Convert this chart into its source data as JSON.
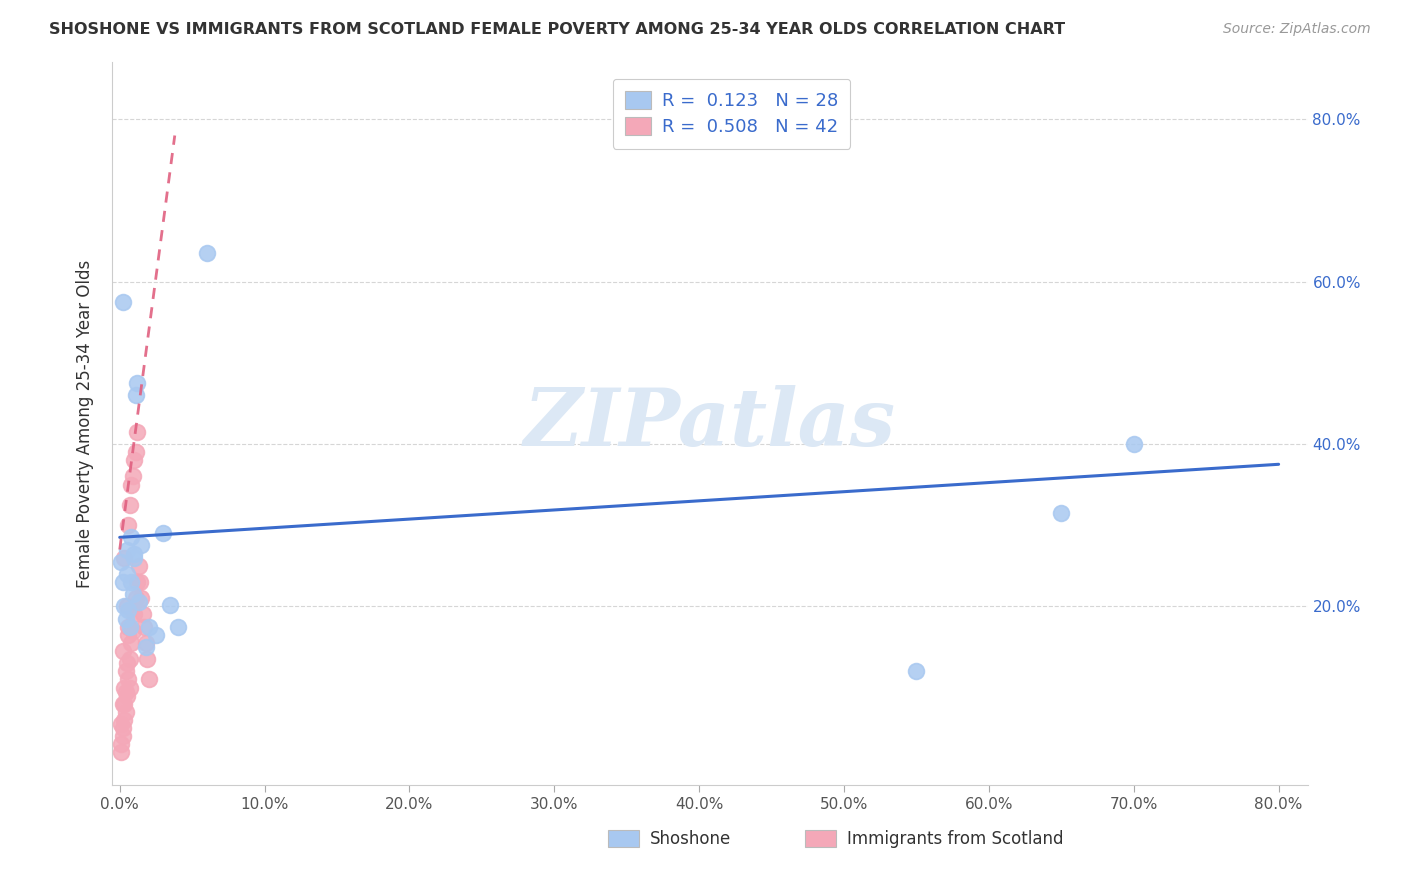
{
  "title": "SHOSHONE VS IMMIGRANTS FROM SCOTLAND FEMALE POVERTY AMONG 25-34 YEAR OLDS CORRELATION CHART",
  "source": "Source: ZipAtlas.com",
  "ylabel": "Female Poverty Among 25-34 Year Olds",
  "xlim": [
    0.0,
    0.8
  ],
  "ylim": [
    -0.02,
    0.87
  ],
  "xticks": [
    0.0,
    0.1,
    0.2,
    0.3,
    0.4,
    0.5,
    0.6,
    0.7,
    0.8
  ],
  "xticklabels": [
    "0.0%",
    "10.0%",
    "20.0%",
    "30.0%",
    "40.0%",
    "50.0%",
    "60.0%",
    "70.0%",
    "80.0%"
  ],
  "yticks": [
    0.2,
    0.4,
    0.6,
    0.8
  ],
  "yticklabels": [
    "20.0%",
    "40.0%",
    "60.0%",
    "80.0%"
  ],
  "shoshone_color": "#a8c8f0",
  "scotland_color": "#f4a8b8",
  "trendline_blue": "#3a6bcc",
  "trendline_pink": "#e06080",
  "watermark": "ZIPatlas",
  "watermark_color": "#dce8f5",
  "legend_label_blue": "R =  0.123   N = 28",
  "legend_label_pink": "R =  0.508   N = 42",
  "shoshone_x": [
    0.001,
    0.003,
    0.004,
    0.005,
    0.006,
    0.007,
    0.008,
    0.009,
    0.01,
    0.011,
    0.012,
    0.013,
    0.015,
    0.018,
    0.02,
    0.025,
    0.03,
    0.035,
    0.04,
    0.06,
    0.002,
    0.008,
    0.55,
    0.65,
    0.7,
    0.002,
    0.005,
    0.01
  ],
  "shoshone_y": [
    0.255,
    0.2,
    0.185,
    0.24,
    0.195,
    0.175,
    0.23,
    0.215,
    0.265,
    0.46,
    0.475,
    0.205,
    0.275,
    0.15,
    0.175,
    0.165,
    0.29,
    0.202,
    0.175,
    0.635,
    0.575,
    0.285,
    0.12,
    0.315,
    0.4,
    0.23,
    0.27,
    0.26
  ],
  "scotland_x": [
    0.001,
    0.001,
    0.002,
    0.002,
    0.002,
    0.003,
    0.003,
    0.003,
    0.004,
    0.004,
    0.005,
    0.005,
    0.006,
    0.006,
    0.006,
    0.007,
    0.007,
    0.008,
    0.008,
    0.009,
    0.009,
    0.01,
    0.01,
    0.011,
    0.011,
    0.012,
    0.012,
    0.013,
    0.014,
    0.015,
    0.016,
    0.017,
    0.018,
    0.019,
    0.02,
    0.001,
    0.002,
    0.003,
    0.004,
    0.005,
    0.006,
    0.007
  ],
  "scotland_y": [
    0.02,
    0.055,
    0.04,
    0.08,
    0.145,
    0.06,
    0.1,
    0.26,
    0.07,
    0.12,
    0.09,
    0.2,
    0.11,
    0.175,
    0.3,
    0.135,
    0.325,
    0.155,
    0.35,
    0.17,
    0.36,
    0.19,
    0.38,
    0.21,
    0.39,
    0.23,
    0.415,
    0.25,
    0.23,
    0.21,
    0.19,
    0.175,
    0.155,
    0.135,
    0.11,
    0.03,
    0.05,
    0.08,
    0.095,
    0.13,
    0.165,
    0.1
  ],
  "blue_trend_x": [
    0.0,
    0.8
  ],
  "blue_trend_y": [
    0.285,
    0.375
  ],
  "pink_trend_x": [
    0.0,
    0.038
  ],
  "pink_trend_y": [
    0.27,
    0.78
  ]
}
